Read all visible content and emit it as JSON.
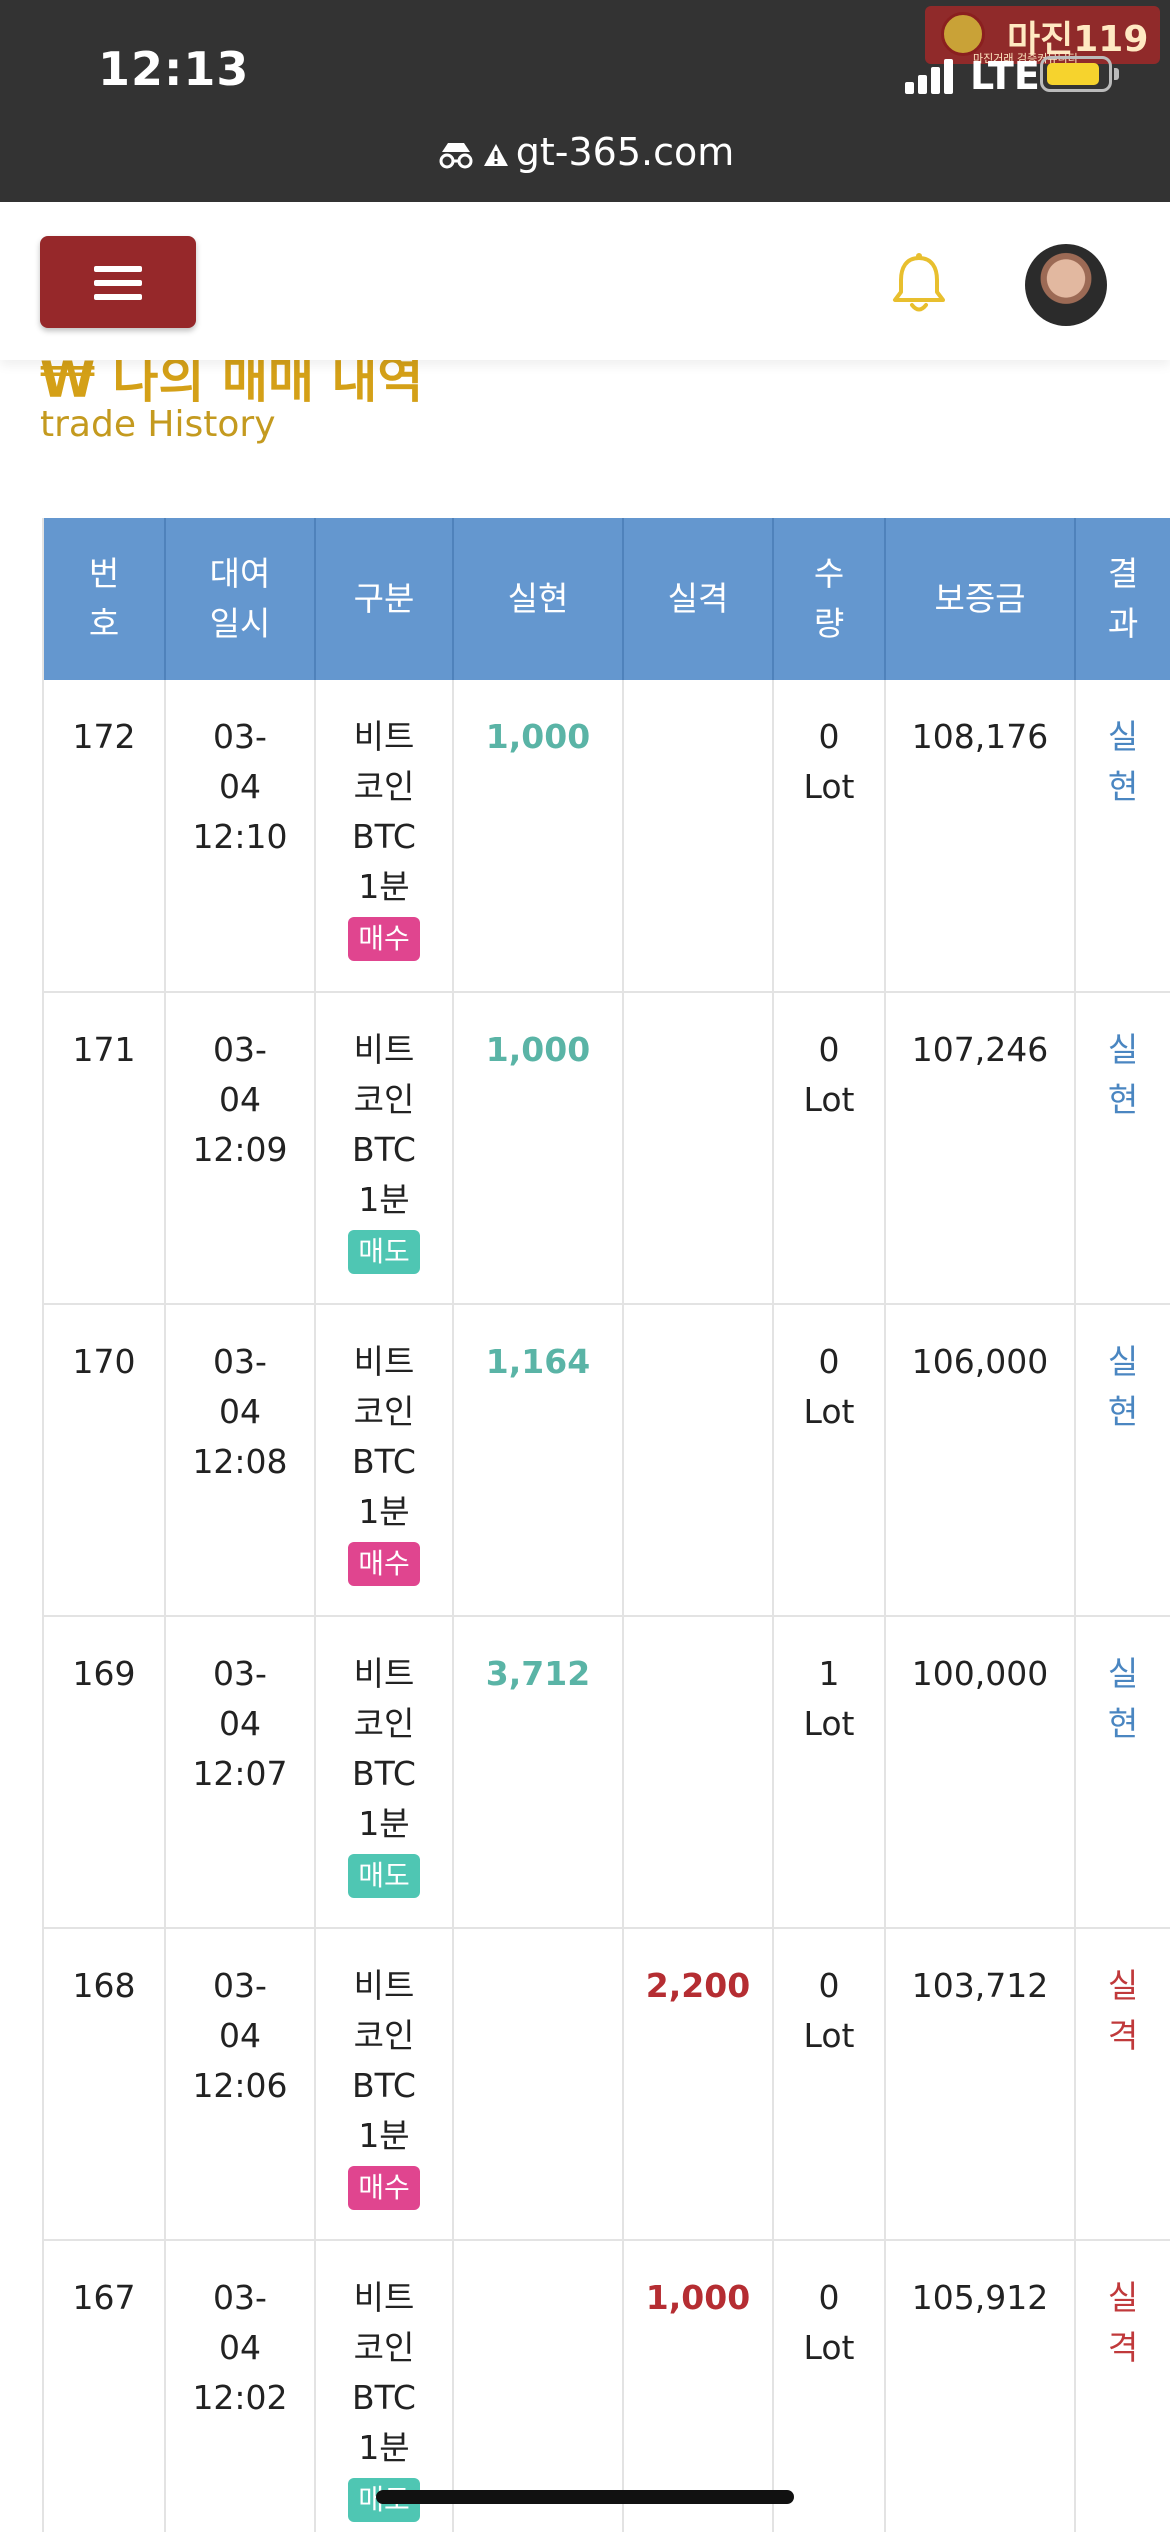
{
  "status_bar": {
    "time": "12:13",
    "network": "LTE",
    "watermark_text": "마진",
    "watermark_suffix": "119",
    "watermark_sub": "마진거래 검증커뮤니티"
  },
  "browser": {
    "url": "gt-365.com"
  },
  "header": {
    "menu_icon": "hamburger-icon",
    "bell_icon": "bell-icon",
    "avatar": "user-avatar"
  },
  "page": {
    "title": "₩ 나의 매매 내역",
    "subtitle": "trade History"
  },
  "table": {
    "headers": {
      "no": "번\n호",
      "date": "대여\n일시",
      "category": "구분",
      "profit": "실현",
      "loss": "실격",
      "qty": "수\n량",
      "deposit": "보증금",
      "result": "결\n과"
    },
    "rows": [
      {
        "no": "172",
        "date": "03-\n04\n12:10",
        "category": "비트\n코인\nBTC\n1분",
        "side": "매수",
        "profit": "1,000",
        "loss": "",
        "qty": "0\nLot",
        "deposit": "108,176",
        "result": "실\n현"
      },
      {
        "no": "171",
        "date": "03-\n04\n12:09",
        "category": "비트\n코인\nBTC\n1분",
        "side": "매도",
        "profit": "1,000",
        "loss": "",
        "qty": "0\nLot",
        "deposit": "107,246",
        "result": "실\n현"
      },
      {
        "no": "170",
        "date": "03-\n04\n12:08",
        "category": "비트\n코인\nBTC\n1분",
        "side": "매수",
        "profit": "1,164",
        "loss": "",
        "qty": "0\nLot",
        "deposit": "106,000",
        "result": "실\n현"
      },
      {
        "no": "169",
        "date": "03-\n04\n12:07",
        "category": "비트\n코인\nBTC\n1분",
        "side": "매도",
        "profit": "3,712",
        "loss": "",
        "qty": "1\nLot",
        "deposit": "100,000",
        "result": "실\n현"
      },
      {
        "no": "168",
        "date": "03-\n04\n12:06",
        "category": "비트\n코인\nBTC\n1분",
        "side": "매수",
        "profit": "",
        "loss": "2,200",
        "qty": "0\nLot",
        "deposit": "103,712",
        "result": "실\n격"
      },
      {
        "no": "167",
        "date": "03-\n04\n12:02",
        "category": "비트\n코인\nBTC\n1분",
        "side": "매도",
        "profit": "",
        "loss": "1,000",
        "qty": "0\nLot",
        "deposit": "105,912",
        "result": "실\n격"
      }
    ]
  },
  "colors": {
    "header_bg": "#6497cf",
    "profit": "#5ab4a6",
    "loss": "#b52d32",
    "buy_badge": "#e0458f",
    "sell_badge": "#4fc6b3",
    "menu_button": "#96282a",
    "accent_gold": "#d4a017"
  }
}
